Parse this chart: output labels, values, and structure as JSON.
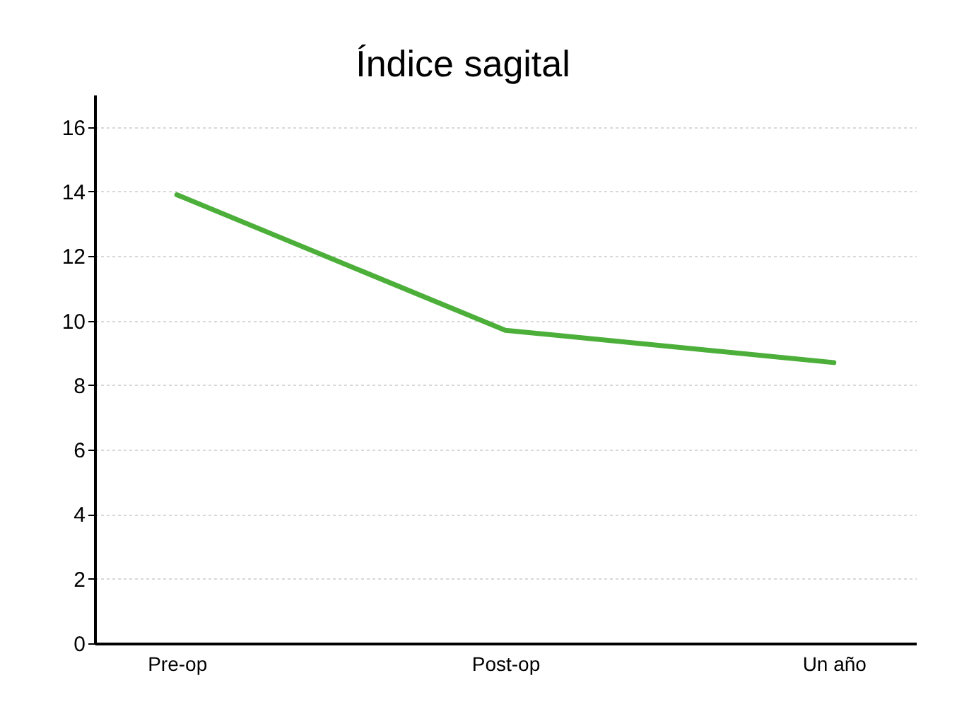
{
  "chart_data": {
    "type": "line",
    "title": "Índice sagital",
    "categories": [
      "Pre-op",
      "Post-op",
      "Un año"
    ],
    "series": [
      {
        "color": "#4caf3a",
        "values": [
          13.9,
          9.7,
          8.7
        ]
      }
    ],
    "ylim": [
      0,
      17
    ],
    "yticks": [
      0,
      2,
      4,
      6,
      8,
      10,
      12,
      14,
      16
    ],
    "grid": "y",
    "legend": false,
    "marker": "none",
    "line_style": "solid"
  }
}
